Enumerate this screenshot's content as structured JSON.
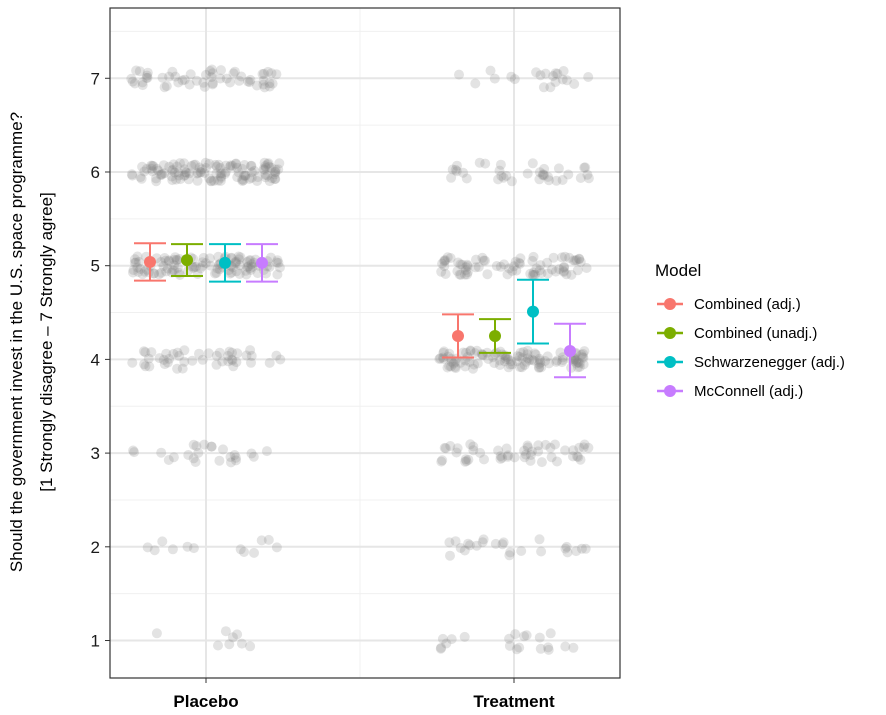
{
  "chart_data": {
    "type": "scatter",
    "title": "",
    "xlabel": "",
    "ylabel_line1": "Should the government invest in the U.S. space programme?",
    "ylabel_line2": "[1 Strongly disagree – 7 Strongly agree]",
    "categories": [
      "Placebo",
      "Treatment"
    ],
    "y_ticks": [
      "1",
      "2",
      "3",
      "4",
      "5",
      "6",
      "7"
    ],
    "ylim": [
      0.6,
      7.75
    ],
    "grid": true,
    "legend_title": "Model",
    "legend_position": "right",
    "series": [
      {
        "name": "Combined (adj.)",
        "color": "#F8766D",
        "estimates": [
          {
            "category": "Placebo",
            "mean": 5.04,
            "lower": 4.84,
            "upper": 5.24
          },
          {
            "category": "Treatment",
            "mean": 4.25,
            "lower": 4.02,
            "upper": 4.48
          }
        ]
      },
      {
        "name": "Combined (unadj.)",
        "color": "#7CAE00",
        "estimates": [
          {
            "category": "Placebo",
            "mean": 5.06,
            "lower": 4.89,
            "upper": 5.23
          },
          {
            "category": "Treatment",
            "mean": 4.25,
            "lower": 4.07,
            "upper": 4.43
          }
        ]
      },
      {
        "name": "Schwarzenegger (adj.)",
        "color": "#00BFC4",
        "estimates": [
          {
            "category": "Placebo",
            "mean": 5.03,
            "lower": 4.83,
            "upper": 5.23
          },
          {
            "category": "Treatment",
            "mean": 4.51,
            "lower": 4.17,
            "upper": 4.85
          }
        ]
      },
      {
        "name": "McConnell (adj.)",
        "color": "#C77CFF",
        "estimates": [
          {
            "category": "Placebo",
            "mean": 5.03,
            "lower": 4.83,
            "upper": 5.23
          },
          {
            "category": "Treatment",
            "mean": 4.09,
            "lower": 3.81,
            "upper": 4.38
          }
        ]
      }
    ],
    "raw_response_counts": {
      "Placebo": {
        "1": 8,
        "2": 12,
        "3": 24,
        "4": 45,
        "5": 110,
        "6": 120,
        "7": 55
      },
      "Treatment": {
        "1": 20,
        "2": 24,
        "3": 50,
        "4": 110,
        "5": 75,
        "6": 35,
        "7": 20
      }
    }
  }
}
